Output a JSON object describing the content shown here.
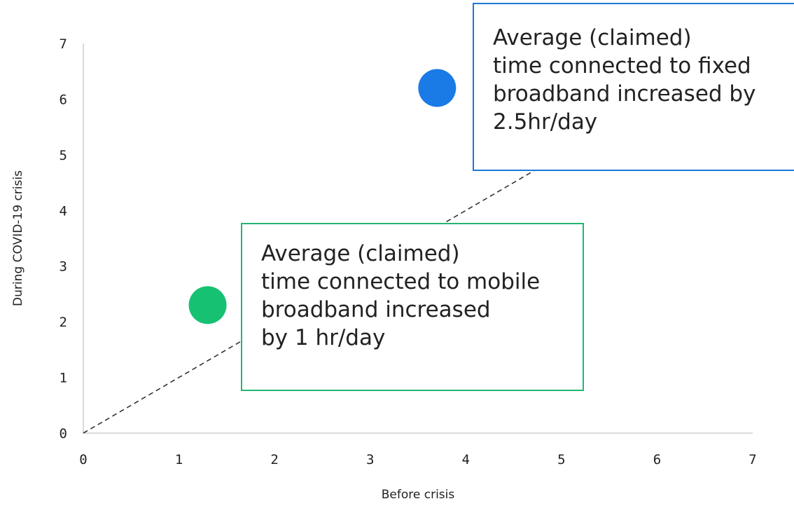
{
  "chart_data": {
    "type": "scatter",
    "title": "",
    "xlabel": "Before crisis",
    "ylabel": "During COVID-19 crisis",
    "xlim": [
      0,
      7
    ],
    "ylim": [
      0,
      7
    ],
    "x_ticks": [
      "0",
      "1",
      "2",
      "3",
      "4",
      "5",
      "6",
      "7"
    ],
    "y_ticks": [
      "0",
      "1",
      "2",
      "3",
      "4",
      "5",
      "6",
      "7"
    ],
    "grid": false,
    "series": [
      {
        "points": [
          {
            "x": 1.3,
            "y": 2.3
          }
        ],
        "color": "#16c172"
      },
      {
        "points": [
          {
            "x": 3.7,
            "y": 6.2
          }
        ],
        "color": "#1a7ae6"
      }
    ],
    "reference_line": {
      "from": [
        0,
        0
      ],
      "to": [
        7,
        7
      ],
      "style": "dashed",
      "color": "#333333"
    },
    "annotations": [
      {
        "id": "fixed",
        "border_color": "#1a7ad4",
        "lines": [
          "Average (claimed)",
          "time connected to fixed",
          "broadband increased by",
          "2.5hr/day"
        ]
      },
      {
        "id": "mobile",
        "border_color": "#22b573",
        "lines": [
          "Average (claimed)",
          "time connected to mobile",
          "broadband increased",
          "by 1 hr/day"
        ]
      }
    ]
  }
}
